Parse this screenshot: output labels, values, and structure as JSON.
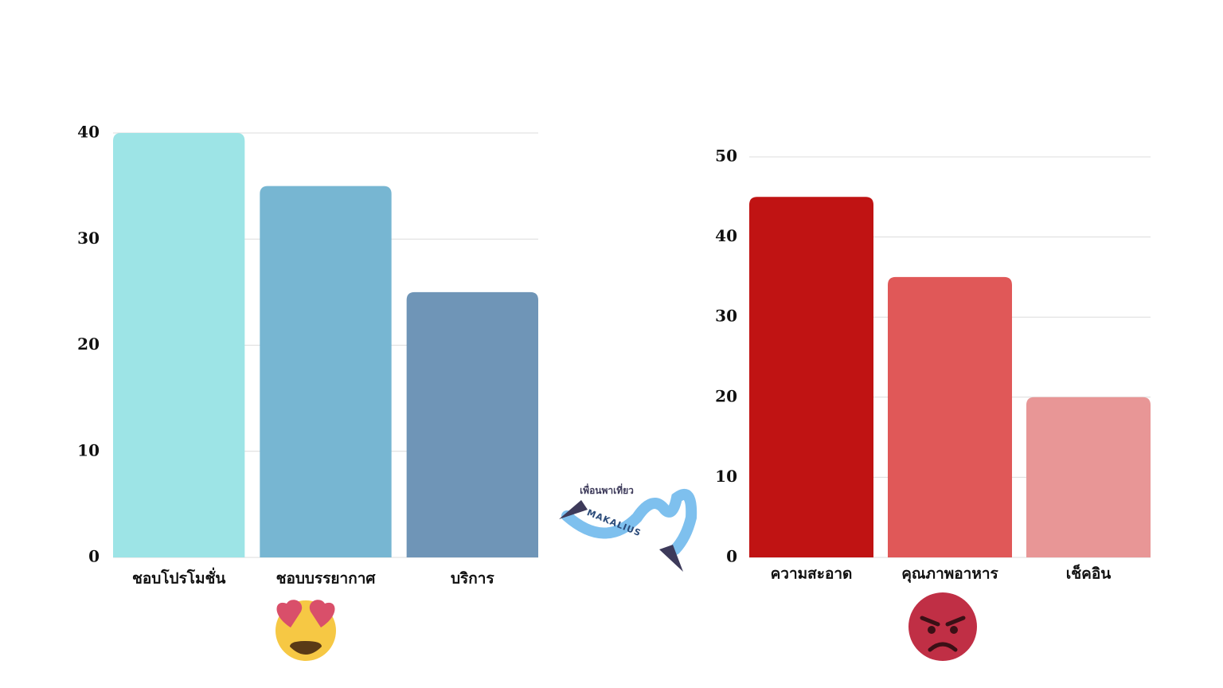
{
  "chart_data": [
    {
      "type": "bar",
      "categories": [
        "ชอบโปรโมชั่น",
        "ชอบบรรยากาศ",
        "บริการ"
      ],
      "values": [
        40,
        35,
        25
      ],
      "colors": [
        "#9de4e6",
        "#77b6d2",
        "#6f95b7"
      ],
      "ylim": [
        0,
        40
      ],
      "yticks": [
        0,
        10,
        20,
        30,
        40
      ],
      "grid": true
    },
    {
      "type": "bar",
      "categories": [
        "ความสะอาด",
        "คุณภาพอาหาร",
        "เช็คอิน"
      ],
      "values": [
        45,
        35,
        20
      ],
      "colors": [
        "#c01313",
        "#e05858",
        "#e89696"
      ],
      "ylim": [
        0,
        50
      ],
      "yticks": [
        0,
        10,
        20,
        30,
        40,
        50
      ],
      "grid": true
    }
  ],
  "logo": {
    "tagline": "เพื่อนพาเที่ยว",
    "name": "MAKALIUS"
  }
}
